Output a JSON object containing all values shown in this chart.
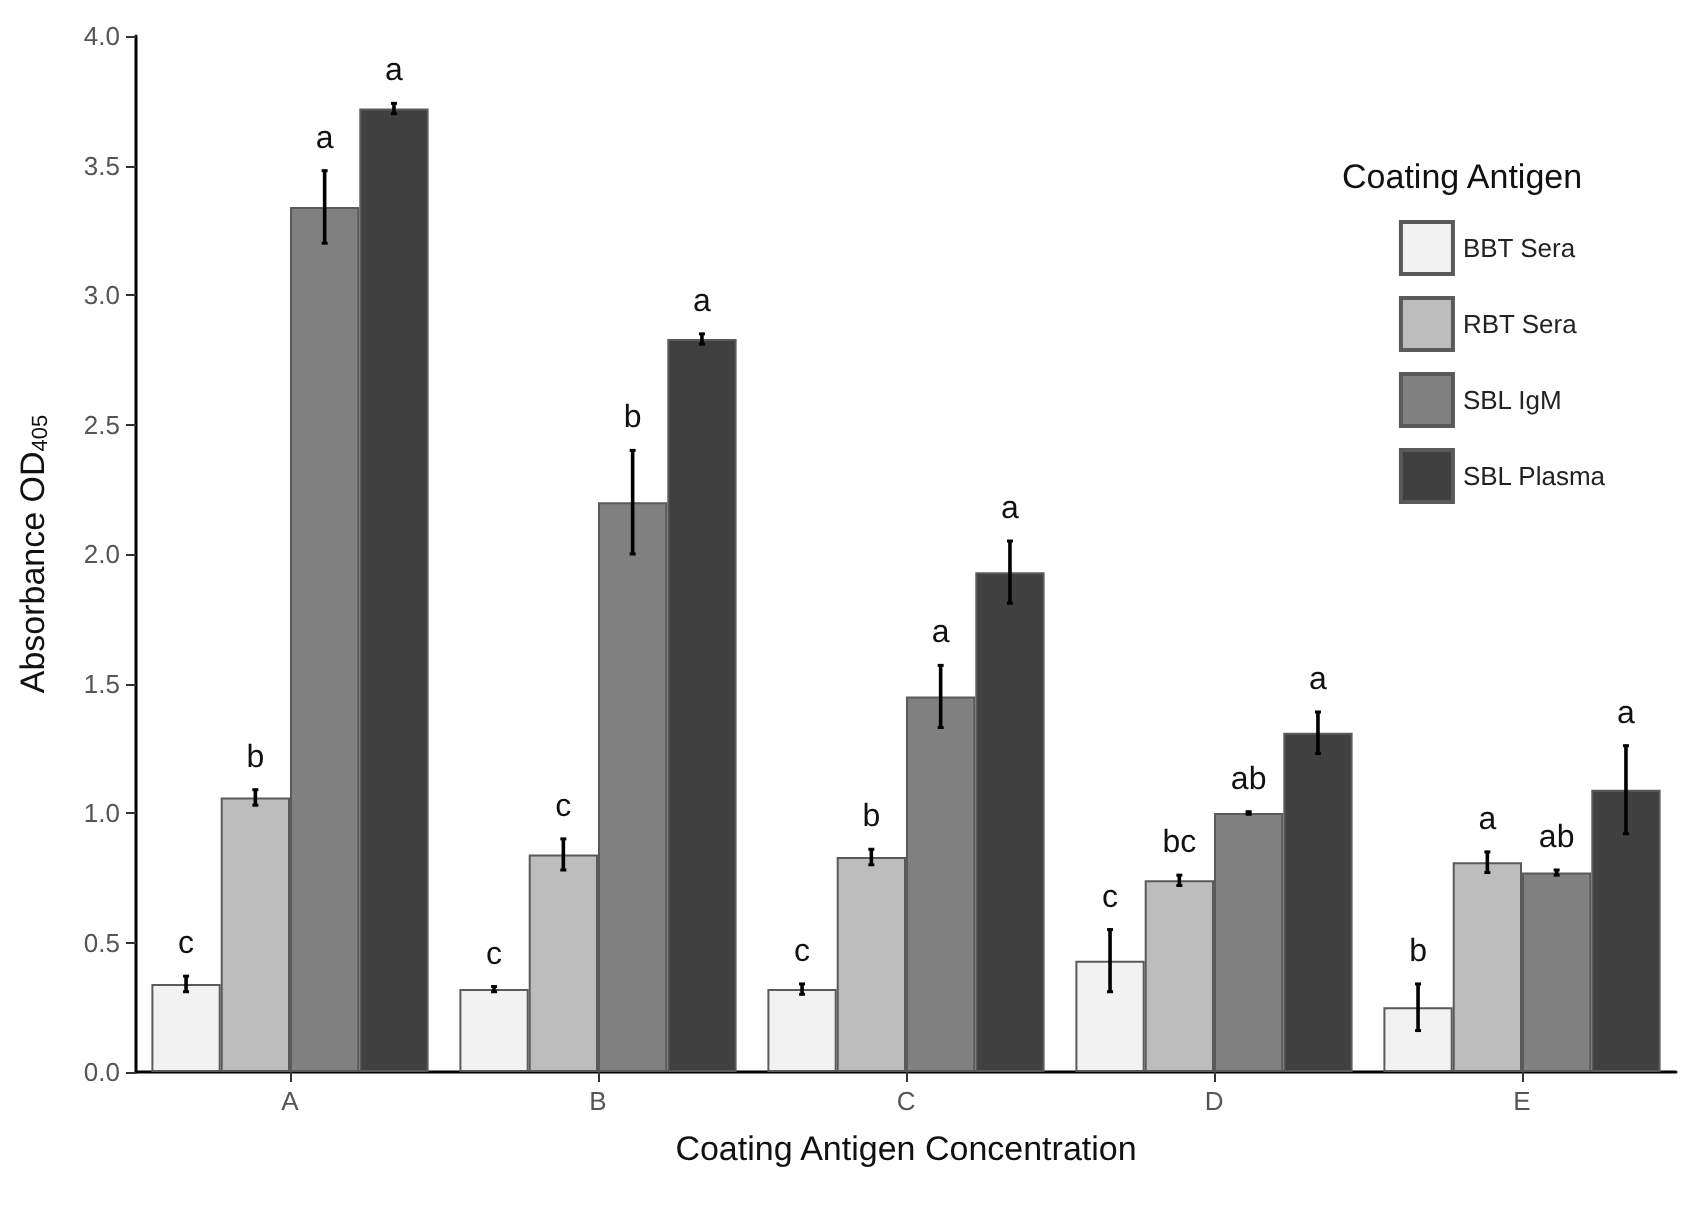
{
  "chart_data": {
    "type": "bar",
    "xlabel": "Coating Antigen Concentration",
    "ylabel": "Absorbance OD$_{405}$",
    "legend_title": "Coating Antigen",
    "categories": [
      "A",
      "B",
      "C",
      "D",
      "E"
    ],
    "series": [
      {
        "name": "BBT Sera",
        "color": "#f2f2f2",
        "values": [
          0.34,
          0.32,
          0.32,
          0.43,
          0.25
        ],
        "errors": [
          0.03,
          0.01,
          0.02,
          0.12,
          0.09
        ],
        "value_labels": [
          "c",
          "c",
          "c",
          "c",
          "b"
        ]
      },
      {
        "name": "RBT Sera",
        "color": "#bdbdbd",
        "values": [
          1.06,
          0.84,
          0.83,
          0.74,
          0.81
        ],
        "errors": [
          0.03,
          0.06,
          0.03,
          0.02,
          0.04
        ],
        "value_labels": [
          "b",
          "c",
          "b",
          "bc",
          "a"
        ]
      },
      {
        "name": "SBL IgM",
        "color": "#808080",
        "values": [
          3.34,
          2.2,
          1.45,
          1.0,
          0.77
        ],
        "errors": [
          0.14,
          0.2,
          0.12,
          0.005,
          0.01
        ],
        "value_labels": [
          "a",
          "b",
          "a",
          "ab",
          "ab"
        ]
      },
      {
        "name": "SBL Plasma",
        "color": "#404040",
        "values": [
          3.72,
          2.83,
          1.93,
          1.31,
          1.09
        ],
        "errors": [
          0.02,
          0.02,
          0.12,
          0.08,
          0.17
        ],
        "value_labels": [
          "a",
          "a",
          "a",
          "a",
          "a"
        ]
      }
    ],
    "ylim": [
      0,
      4
    ],
    "yticks": [
      {
        "value": 0,
        "label": "0.0"
      },
      0.5,
      {
        "value": 1,
        "label": "1.0"
      },
      1.5,
      {
        "value": 2,
        "label": "2.0"
      },
      2.5,
      {
        "value": 3,
        "label": "3.0"
      },
      3.5,
      {
        "value": 4,
        "label": "4.0"
      }
    ],
    "grid": false,
    "legend": "top right"
  }
}
